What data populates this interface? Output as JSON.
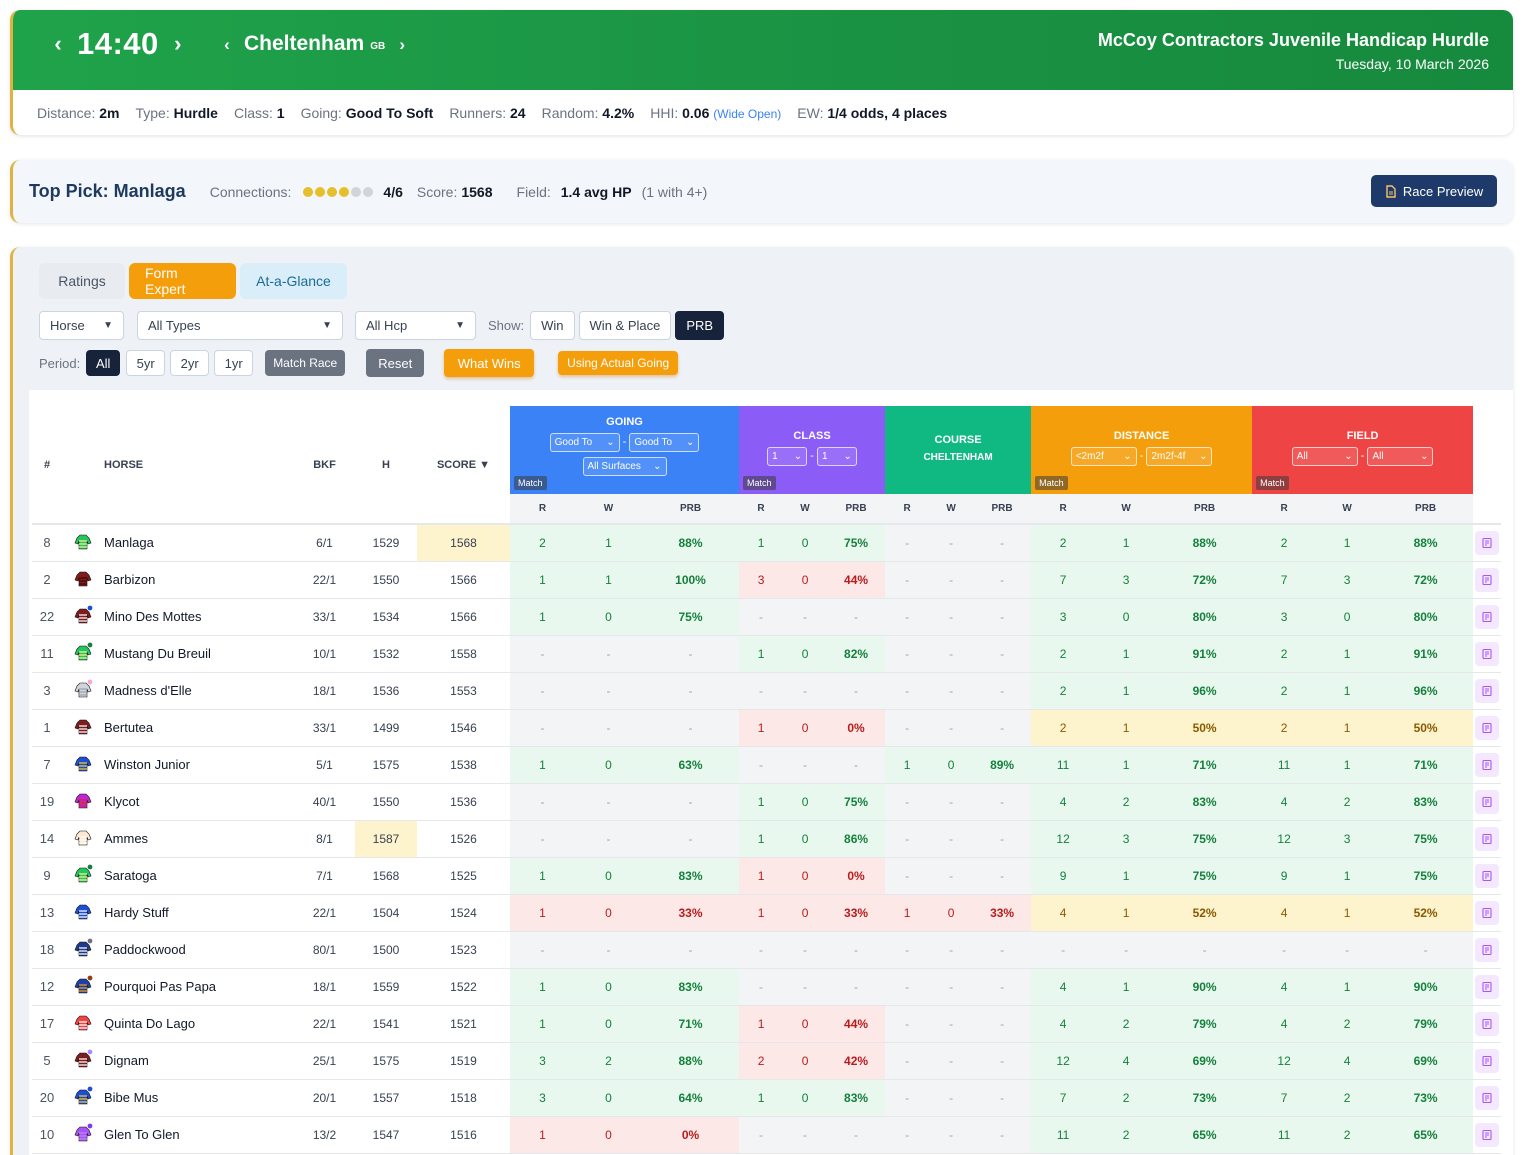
{
  "header": {
    "time": "14:40",
    "course": "Cheltenham",
    "country": "GB",
    "race_title": "McCoy Contractors Juvenile Handicap Hurdle",
    "race_date": "Tuesday, 10 March 2026",
    "meta": {
      "distance_label": "Distance:",
      "distance": "2m",
      "type_label": "Type:",
      "type": "Hurdle",
      "class_label": "Class:",
      "class": "1",
      "going_label": "Going:",
      "going": "Good To Soft",
      "runners_label": "Runners:",
      "runners": "24",
      "random_label": "Random:",
      "random": "4.2%",
      "hhi_label": "HHI:",
      "hhi": "0.06",
      "hhi_note": "(Wide Open)",
      "ew_label": "EW:",
      "ew": "1/4 odds, 4 places"
    }
  },
  "top_pick": {
    "label": "Top Pick: Manlaga",
    "connections_label": "Connections:",
    "connections_rating": 4,
    "connections_max": 6,
    "connections_text": "4/6",
    "score_label": "Score:",
    "score": "1568",
    "field_label": "Field:",
    "field": "1.4 avg HP",
    "field_note": "(1 with 4+)",
    "preview_button": "Race Preview"
  },
  "tabs": [
    "Ratings",
    "Form Expert",
    "At-a-Glance"
  ],
  "filters": {
    "horse_select": "Horse",
    "types_select": "All Types",
    "hcp_select": "All Hcp",
    "show_label": "Show:",
    "show_options": [
      "Win",
      "Win & Place",
      "PRB"
    ],
    "period_label": "Period:",
    "period_options": [
      "All",
      "5yr",
      "2yr",
      "1yr"
    ],
    "match_race": "Match Race",
    "reset": "Reset",
    "what_wins": "What Wins",
    "actual_going": "Using Actual Going"
  },
  "table": {
    "headers": {
      "num": "#",
      "horse": "HORSE",
      "bkf": "BKF",
      "h": "H",
      "score": "SCORE ▼",
      "going": "GOING",
      "class": "CLASS",
      "course": "COURSE",
      "course_name": "CHELTENHAM",
      "distance": "DISTANCE",
      "field": "FIELD",
      "match": "Match",
      "r": "R",
      "w": "W",
      "prb": "PRB"
    },
    "group_filters": {
      "going_a": "Good To",
      "going_b": "Good To",
      "surfaces": "All Surfaces",
      "class_a": "1",
      "class_b": "1",
      "dist_a": "<2m2f",
      "dist_b": "2m2f-4f",
      "field_a": "All",
      "field_b": "All"
    },
    "rows": [
      {
        "num": "8",
        "horse": "Manlaga",
        "bkf": "6/1",
        "h": "1529",
        "score": "1568",
        "score_hl": true,
        "silk": "#22c55e",
        "silk2": "#fef08a",
        "dot": "",
        "going": [
          "2",
          "1",
          "88%",
          "g"
        ],
        "class": [
          "1",
          "0",
          "75%",
          "g"
        ],
        "course": [
          "-",
          "-",
          "-",
          "n"
        ],
        "dist": [
          "2",
          "1",
          "88%",
          "g"
        ],
        "field": [
          "2",
          "1",
          "88%",
          "g"
        ]
      },
      {
        "num": "2",
        "horse": "Barbizon",
        "bkf": "22/1",
        "h": "1550",
        "score": "1566",
        "silk": "#7f1d1d",
        "silk2": "#450a0a",
        "dot": "",
        "going": [
          "1",
          "1",
          "100%",
          "g"
        ],
        "class": [
          "3",
          "0",
          "44%",
          "r"
        ],
        "course": [
          "-",
          "-",
          "-",
          "n"
        ],
        "dist": [
          "7",
          "3",
          "72%",
          "g"
        ],
        "field": [
          "7",
          "3",
          "72%",
          "g"
        ]
      },
      {
        "num": "22",
        "horse": "Mino Des Mottes",
        "bkf": "33/1",
        "h": "1534",
        "score": "1566",
        "silk": "#7f1d1d",
        "silk2": "#ffffff",
        "dot": "#1d4ed8",
        "going": [
          "1",
          "0",
          "75%",
          "g"
        ],
        "class": [
          "-",
          "-",
          "-",
          "n"
        ],
        "course": [
          "-",
          "-",
          "-",
          "n"
        ],
        "dist": [
          "3",
          "0",
          "80%",
          "g"
        ],
        "field": [
          "3",
          "0",
          "80%",
          "g"
        ]
      },
      {
        "num": "11",
        "horse": "Mustang Du Breuil",
        "bkf": "10/1",
        "h": "1532",
        "score": "1558",
        "silk": "#22c55e",
        "silk2": "#fef08a",
        "dot": "#15803d",
        "going": [
          "-",
          "-",
          "-",
          "n"
        ],
        "class": [
          "1",
          "0",
          "82%",
          "g"
        ],
        "course": [
          "-",
          "-",
          "-",
          "n"
        ],
        "dist": [
          "2",
          "1",
          "91%",
          "g"
        ],
        "field": [
          "2",
          "1",
          "91%",
          "g"
        ]
      },
      {
        "num": "3",
        "horse": "Madness d'Elle",
        "bkf": "18/1",
        "h": "1536",
        "score": "1553",
        "silk": "#d1d5db",
        "silk2": "#9ca3af",
        "dot": "#f9a8d4",
        "going": [
          "-",
          "-",
          "-",
          "n"
        ],
        "class": [
          "-",
          "-",
          "-",
          "n"
        ],
        "course": [
          "-",
          "-",
          "-",
          "n"
        ],
        "dist": [
          "2",
          "1",
          "96%",
          "g"
        ],
        "field": [
          "2",
          "1",
          "96%",
          "g"
        ]
      },
      {
        "num": "1",
        "horse": "Bertutea",
        "bkf": "33/1",
        "h": "1499",
        "score": "1546",
        "silk": "#7f1d1d",
        "silk2": "#ffffff",
        "dot": "",
        "going": [
          "-",
          "-",
          "-",
          "n"
        ],
        "class": [
          "1",
          "0",
          "0%",
          "r"
        ],
        "course": [
          "-",
          "-",
          "-",
          "n"
        ],
        "dist": [
          "2",
          "1",
          "50%",
          "y"
        ],
        "field": [
          "2",
          "1",
          "50%",
          "y"
        ]
      },
      {
        "num": "7",
        "horse": "Winston Junior",
        "bkf": "5/1",
        "h": "1575",
        "score": "1538",
        "silk": "#1d4ed8",
        "silk2": "#facc15",
        "dot": "",
        "going": [
          "1",
          "0",
          "63%",
          "g"
        ],
        "class": [
          "-",
          "-",
          "-",
          "n"
        ],
        "course": [
          "1",
          "0",
          "89%",
          "g"
        ],
        "dist": [
          "11",
          "1",
          "71%",
          "g"
        ],
        "field": [
          "11",
          "1",
          "71%",
          "g"
        ]
      },
      {
        "num": "19",
        "horse": "Klycot",
        "bkf": "40/1",
        "h": "1550",
        "score": "1536",
        "silk": "#c026d3",
        "silk2": "#dc2626",
        "dot": "",
        "going": [
          "-",
          "-",
          "-",
          "n"
        ],
        "class": [
          "1",
          "0",
          "75%",
          "g"
        ],
        "course": [
          "-",
          "-",
          "-",
          "n"
        ],
        "dist": [
          "4",
          "2",
          "83%",
          "g"
        ],
        "field": [
          "4",
          "2",
          "83%",
          "g"
        ]
      },
      {
        "num": "14",
        "horse": "Ammes",
        "bkf": "8/1",
        "h": "1587",
        "h_hl": true,
        "score": "1526",
        "silk": "#fde9d2",
        "silk2": "#ffffff",
        "dot": "",
        "going": [
          "-",
          "-",
          "-",
          "n"
        ],
        "class": [
          "1",
          "0",
          "86%",
          "g"
        ],
        "course": [
          "-",
          "-",
          "-",
          "n"
        ],
        "dist": [
          "12",
          "3",
          "75%",
          "g"
        ],
        "field": [
          "12",
          "3",
          "75%",
          "g"
        ]
      },
      {
        "num": "9",
        "horse": "Saratoga",
        "bkf": "7/1",
        "h": "1568",
        "score": "1525",
        "silk": "#22c55e",
        "silk2": "#fef08a",
        "dot": "#15803d",
        "going": [
          "1",
          "0",
          "83%",
          "g"
        ],
        "class": [
          "1",
          "0",
          "0%",
          "r"
        ],
        "course": [
          "-",
          "-",
          "-",
          "n"
        ],
        "dist": [
          "9",
          "1",
          "75%",
          "g"
        ],
        "field": [
          "9",
          "1",
          "75%",
          "g"
        ]
      },
      {
        "num": "13",
        "horse": "Hardy Stuff",
        "bkf": "22/1",
        "h": "1504",
        "score": "1524",
        "silk": "#1d4ed8",
        "silk2": "#ffffff",
        "dot": "",
        "going": [
          "1",
          "0",
          "33%",
          "r"
        ],
        "class": [
          "1",
          "0",
          "33%",
          "r"
        ],
        "course": [
          "1",
          "0",
          "33%",
          "r"
        ],
        "dist": [
          "4",
          "1",
          "52%",
          "y"
        ],
        "field": [
          "4",
          "1",
          "52%",
          "y"
        ]
      },
      {
        "num": "18",
        "horse": "Paddockwood",
        "bkf": "80/1",
        "h": "1500",
        "score": "1523",
        "silk": "#1e3a8a",
        "silk2": "#ffffff",
        "dot": "#6b7280",
        "going": [
          "-",
          "-",
          "-",
          "n"
        ],
        "class": [
          "-",
          "-",
          "-",
          "n"
        ],
        "course": [
          "-",
          "-",
          "-",
          "n"
        ],
        "dist": [
          "-",
          "-",
          "-",
          "n"
        ],
        "field": [
          "-",
          "-",
          "-",
          "n"
        ]
      },
      {
        "num": "12",
        "horse": "Pourquoi Pas Papa",
        "bkf": "18/1",
        "h": "1559",
        "score": "1522",
        "silk": "#1e40af",
        "silk2": "#f59e0b",
        "dot": "#92400e",
        "going": [
          "1",
          "0",
          "83%",
          "g"
        ],
        "class": [
          "-",
          "-",
          "-",
          "n"
        ],
        "course": [
          "-",
          "-",
          "-",
          "n"
        ],
        "dist": [
          "4",
          "1",
          "90%",
          "g"
        ],
        "field": [
          "4",
          "1",
          "90%",
          "g"
        ]
      },
      {
        "num": "17",
        "horse": "Quinta Do Lago",
        "bkf": "22/1",
        "h": "1541",
        "score": "1521",
        "silk": "#ef4444",
        "silk2": "#ffffff",
        "dot": "",
        "going": [
          "1",
          "0",
          "71%",
          "g"
        ],
        "class": [
          "1",
          "0",
          "44%",
          "r"
        ],
        "course": [
          "-",
          "-",
          "-",
          "n"
        ],
        "dist": [
          "4",
          "2",
          "79%",
          "g"
        ],
        "field": [
          "4",
          "2",
          "79%",
          "g"
        ]
      },
      {
        "num": "5",
        "horse": "Dignam",
        "bkf": "25/1",
        "h": "1575",
        "score": "1519",
        "silk": "#7f1d1d",
        "silk2": "#ffffff",
        "dot": "#a78bfa",
        "going": [
          "3",
          "2",
          "88%",
          "g"
        ],
        "class": [
          "2",
          "0",
          "42%",
          "r"
        ],
        "course": [
          "-",
          "-",
          "-",
          "n"
        ],
        "dist": [
          "12",
          "4",
          "69%",
          "g"
        ],
        "field": [
          "12",
          "4",
          "69%",
          "g"
        ]
      },
      {
        "num": "20",
        "horse": "Bibe Mus",
        "bkf": "20/1",
        "h": "1557",
        "score": "1518",
        "silk": "#1d4ed8",
        "silk2": "#facc15",
        "dot": "#1d4ed8",
        "going": [
          "3",
          "0",
          "64%",
          "g"
        ],
        "class": [
          "1",
          "0",
          "83%",
          "g"
        ],
        "course": [
          "-",
          "-",
          "-",
          "n"
        ],
        "dist": [
          "7",
          "2",
          "73%",
          "g"
        ],
        "field": [
          "7",
          "2",
          "73%",
          "g"
        ]
      },
      {
        "num": "10",
        "horse": "Glen To Glen",
        "bkf": "13/2",
        "h": "1547",
        "score": "1516",
        "silk": "#a855f7",
        "silk2": "#c084fc",
        "dot": "#7c3aed",
        "going": [
          "1",
          "0",
          "0%",
          "r"
        ],
        "class": [
          "-",
          "-",
          "-",
          "n"
        ],
        "course": [
          "-",
          "-",
          "-",
          "n"
        ],
        "dist": [
          "11",
          "2",
          "65%",
          "g"
        ],
        "field": [
          "11",
          "2",
          "65%",
          "g"
        ]
      }
    ]
  },
  "colors": {
    "header_green": "#1a9143",
    "accent_orange": "#f59e0b",
    "going_blue": "#3b82f6",
    "class_purple": "#8b5cf6",
    "course_green": "#10b981",
    "field_red": "#ef4444",
    "navy": "#1e3a6b"
  },
  "icons": {
    "prev_time": "chevron-left-icon",
    "next_time": "chevron-right-icon",
    "preview": "document-icon",
    "note": "notebook-icon"
  }
}
